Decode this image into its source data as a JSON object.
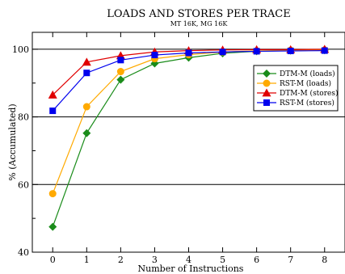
{
  "chart_data": {
    "type": "line",
    "title": "LOADS AND STORES PER TRACE",
    "subtitle": "MT 16K, MG 16K",
    "xlabel": "Number of Instructions",
    "ylabel": "% (Accumulated)",
    "xlim": [
      -0.6,
      8.6
    ],
    "ylim": [
      40,
      105
    ],
    "x_ticks": [
      0,
      1,
      2,
      3,
      4,
      5,
      6,
      7,
      8
    ],
    "y_ticks": [
      40,
      60,
      80,
      100
    ],
    "grid": "horizontal",
    "legend_position": "top-right",
    "x": [
      0,
      1,
      2,
      3,
      4,
      5,
      6,
      7,
      8
    ],
    "series": [
      {
        "name": "DTM-M (loads)",
        "color": "#1a8c1a",
        "marker": "diamond",
        "values": [
          47.5,
          75.2,
          91.0,
          95.8,
          97.5,
          98.8,
          99.4,
          99.6,
          99.7
        ]
      },
      {
        "name": "RST-M (loads)",
        "color": "#ffaa00",
        "marker": "circle",
        "values": [
          57.3,
          83.0,
          93.4,
          97.2,
          98.4,
          99.2,
          99.5,
          99.7,
          99.8
        ]
      },
      {
        "name": "DTM-M (stores)",
        "color": "#e00000",
        "marker": "triangle",
        "values": [
          86.5,
          96.2,
          98.1,
          99.2,
          99.6,
          99.8,
          99.9,
          99.9,
          100.0
        ]
      },
      {
        "name": "RST-M (stores)",
        "color": "#0000ee",
        "marker": "square",
        "values": [
          81.8,
          93.0,
          96.8,
          98.3,
          98.9,
          99.2,
          99.4,
          99.5,
          99.6
        ]
      }
    ]
  }
}
